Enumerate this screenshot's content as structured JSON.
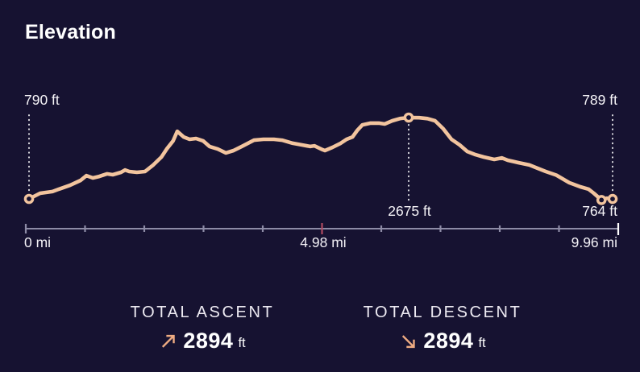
{
  "title": "Elevation",
  "colors": {
    "background": "#161231",
    "profile_line": "#f2c49e",
    "marker_fill": "#161231",
    "axis": "#8d8ba6",
    "axis_end_tick": "#ffffff",
    "axis_mid_tick": "#b04a62",
    "guide_dots": "#ffffff",
    "text": "#ffffff",
    "stat_arrow": "#eeab82"
  },
  "chart_data": {
    "type": "line",
    "title": "Elevation",
    "x_unit": "mi",
    "y_unit": "ft",
    "x_range": [
      0,
      9.96
    ],
    "y_range": [
      764,
      2675
    ],
    "grid": false,
    "legend": false,
    "profile": [
      [
        0,
        790
      ],
      [
        0.19,
        920
      ],
      [
        0.4,
        960
      ],
      [
        0.51,
        1015
      ],
      [
        0.7,
        1105
      ],
      [
        0.88,
        1220
      ],
      [
        0.98,
        1330
      ],
      [
        1.09,
        1275
      ],
      [
        1.2,
        1310
      ],
      [
        1.33,
        1370
      ],
      [
        1.43,
        1350
      ],
      [
        1.57,
        1405
      ],
      [
        1.64,
        1460
      ],
      [
        1.71,
        1425
      ],
      [
        1.84,
        1405
      ],
      [
        1.98,
        1425
      ],
      [
        2.12,
        1575
      ],
      [
        2.26,
        1760
      ],
      [
        2.35,
        1945
      ],
      [
        2.46,
        2135
      ],
      [
        2.53,
        2355
      ],
      [
        2.64,
        2225
      ],
      [
        2.74,
        2170
      ],
      [
        2.85,
        2190
      ],
      [
        2.97,
        2135
      ],
      [
        3.08,
        2005
      ],
      [
        3.22,
        1945
      ],
      [
        3.36,
        1855
      ],
      [
        3.49,
        1910
      ],
      [
        3.63,
        2005
      ],
      [
        3.84,
        2150
      ],
      [
        4.0,
        2170
      ],
      [
        4.18,
        2170
      ],
      [
        4.32,
        2150
      ],
      [
        4.5,
        2080
      ],
      [
        4.66,
        2040
      ],
      [
        4.8,
        2005
      ],
      [
        4.87,
        2020
      ],
      [
        5.01,
        1930
      ],
      [
        5.05,
        1910
      ],
      [
        5.18,
        1985
      ],
      [
        5.32,
        2080
      ],
      [
        5.42,
        2170
      ],
      [
        5.52,
        2225
      ],
      [
        5.6,
        2375
      ],
      [
        5.69,
        2505
      ],
      [
        5.83,
        2545
      ],
      [
        5.97,
        2545
      ],
      [
        6.07,
        2525
      ],
      [
        6.2,
        2600
      ],
      [
        6.34,
        2655
      ],
      [
        6.48,
        2675
      ],
      [
        6.66,
        2670
      ],
      [
        6.8,
        2650
      ],
      [
        6.93,
        2600
      ],
      [
        7.07,
        2415
      ],
      [
        7.21,
        2170
      ],
      [
        7.35,
        2040
      ],
      [
        7.48,
        1890
      ],
      [
        7.62,
        1815
      ],
      [
        7.76,
        1760
      ],
      [
        7.94,
        1705
      ],
      [
        8.07,
        1740
      ],
      [
        8.17,
        1685
      ],
      [
        8.35,
        1630
      ],
      [
        8.54,
        1575
      ],
      [
        8.68,
        1500
      ],
      [
        8.82,
        1425
      ],
      [
        9.0,
        1340
      ],
      [
        9.22,
        1165
      ],
      [
        9.41,
        1070
      ],
      [
        9.55,
        1015
      ],
      [
        9.64,
        920
      ],
      [
        9.77,
        764
      ],
      [
        9.86,
        805
      ],
      [
        9.96,
        789
      ]
    ],
    "annotations": [
      {
        "id": "start",
        "mi": 0,
        "ft": 790,
        "label": "790 ft",
        "label_position": "top-left",
        "guide": "from-top"
      },
      {
        "id": "peak",
        "mi": 6.48,
        "ft": 2675,
        "label": "2675 ft",
        "label_position": "below-center",
        "guide": "to-bottom"
      },
      {
        "id": "end-low",
        "mi": 9.77,
        "ft": 764,
        "label": "764 ft",
        "label_position": "below-right",
        "guide": "none"
      },
      {
        "id": "end",
        "mi": 9.96,
        "ft": 789,
        "label": "789 ft",
        "label_position": "top-right",
        "guide": "from-top"
      }
    ],
    "x_ticks": {
      "count": 11,
      "highlight_index": 5,
      "labels": [
        {
          "text": "0 mi",
          "mi": 0
        },
        {
          "text": "4.98 mi",
          "mi": 4.98
        },
        {
          "text": "9.96 mi",
          "mi": 9.96
        }
      ]
    }
  },
  "stats": {
    "ascent": {
      "label": "TOTAL ASCENT",
      "value": "2894",
      "unit": "ft",
      "icon": "arrow-up-right"
    },
    "descent": {
      "label": "TOTAL DESCENT",
      "value": "2894",
      "unit": "ft",
      "icon": "arrow-down-right"
    }
  }
}
